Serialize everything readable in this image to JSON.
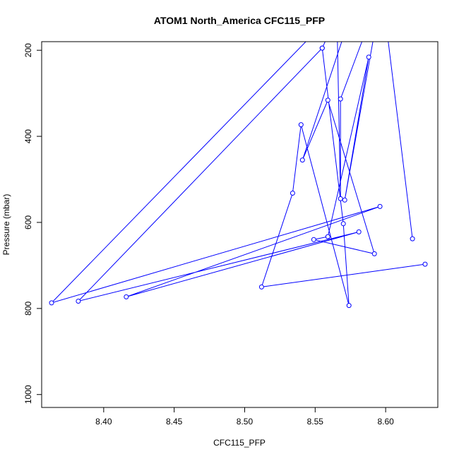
{
  "chart_data": {
    "type": "line",
    "title": "ATOM1 North_America CFC115_PFP",
    "xlabel": "CFC115_PFP",
    "ylabel": "Pressure (mbar)",
    "xlim": [
      8.356,
      8.637
    ],
    "ylim": [
      1030,
      180
    ],
    "y_reversed": true,
    "xticks": [
      8.4,
      8.45,
      8.5,
      8.55,
      8.6
    ],
    "xtick_labels": [
      "8.40",
      "8.45",
      "8.50",
      "8.55",
      "8.60"
    ],
    "yticks": [
      200,
      400,
      600,
      800,
      1000
    ],
    "ytick_labels": [
      "200",
      "400",
      "600",
      "800",
      "1000"
    ],
    "grid": false,
    "line_color": "#0000ff",
    "series": [
      {
        "marker": "open-circle",
        "x": [
          8.628,
          8.512,
          8.534,
          8.54,
          8.574,
          8.57,
          8.555,
          8.575,
          8.555,
          8.382,
          8.581,
          8.416,
          8.596,
          8.363,
          8.582,
          8.541,
          8.559,
          8.592,
          8.549,
          8.559,
          8.588,
          8.571,
          8.598,
          8.568,
          8.568,
          8.565
        ],
        "y": [
          697,
          750,
          532,
          373,
          793,
          603,
          195,
          50,
          195,
          783,
          622,
          773,
          563,
          787,
          50,
          455,
          316,
          673,
          640,
          633,
          216,
          548,
          50,
          313,
          545,
          50
        ]
      }
    ],
    "extra_segments": [
      {
        "x": [
          8.597,
          8.619
        ],
        "y": [
          50,
          638
        ]
      }
    ]
  }
}
